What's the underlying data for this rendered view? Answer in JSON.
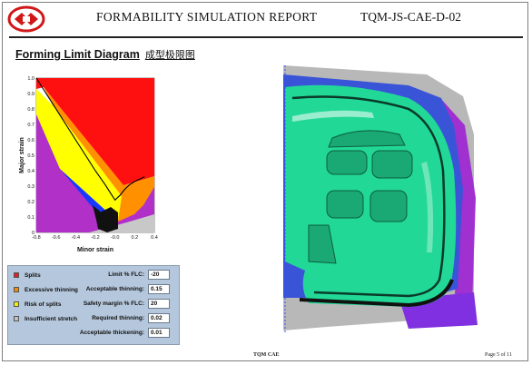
{
  "header": {
    "title": "FORMABILITY SIMULATION REPORT",
    "doc_id": "TQM-JS-CAE-D-02"
  },
  "section": {
    "title": "Forming Limit Diagram",
    "title_cn": "成型极限图"
  },
  "chart_data": {
    "type": "scatter",
    "title": "",
    "xlabel": "Minor strain",
    "ylabel": "Major strain",
    "xlim": [
      -0.8,
      0.4
    ],
    "ylim": [
      0,
      1.0
    ],
    "x_ticks": [
      "-0.8",
      "-0.6",
      "-0.4",
      "-0.2",
      "-0.0",
      "0.2",
      "0.4"
    ],
    "y_ticks": [
      "0",
      "0.1",
      "0.2",
      "0.3",
      "0.4",
      "0.5",
      "0.6",
      "0.7",
      "0.8",
      "0.9",
      "1.0"
    ],
    "flc_curve": {
      "x": [
        -0.8,
        -0.7,
        -0.6,
        -0.5,
        -0.4,
        -0.3,
        -0.2,
        -0.1,
        -0.05,
        0.0,
        0.05,
        0.1,
        0.15,
        0.2,
        0.3
      ],
      "y": [
        1.0,
        0.9,
        0.8,
        0.7,
        0.6,
        0.5,
        0.4,
        0.31,
        0.26,
        0.21,
        0.24,
        0.28,
        0.31,
        0.33,
        0.36
      ]
    },
    "zones": [
      {
        "name": "Splits",
        "color": "#ff0000"
      },
      {
        "name": "Excessive thinning",
        "color": "#ff8c00"
      },
      {
        "name": "Risk of splits",
        "color": "#ffff00"
      },
      {
        "name": "Insufficient stretch",
        "color": "#b030c8"
      }
    ]
  },
  "legend": [
    {
      "label": "Splits",
      "color": "#e02020"
    },
    {
      "label": "Excessive thinning",
      "color": "#f08c00"
    },
    {
      "label": "Risk of splits",
      "color": "#f0f000"
    },
    {
      "label": "Insufficient stretch",
      "color": "#c0c0c0"
    }
  ],
  "params": [
    {
      "label": "Limit % FLC:",
      "value": "-20"
    },
    {
      "label": "Acceptable thinning:",
      "value": "0.15"
    },
    {
      "label": "Safety margin % FLC:",
      "value": "20"
    },
    {
      "label": "Required thinning:",
      "value": "0.02"
    },
    {
      "label": "Acceptable thickening:",
      "value": "0.01"
    }
  ],
  "footer": {
    "center": "TQM CAE",
    "page": "Page 5 of 11"
  }
}
